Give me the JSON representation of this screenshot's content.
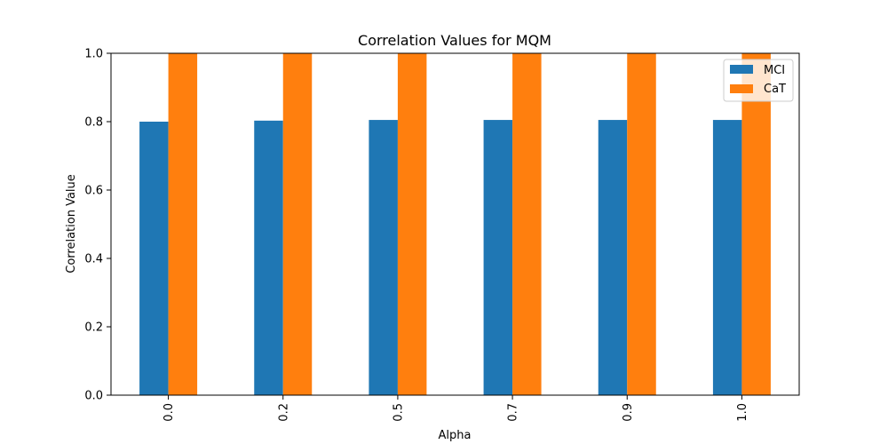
{
  "chart_data": {
    "type": "bar",
    "title": "Correlation Values for MQM",
    "xlabel": "Alpha",
    "ylabel": "Correlation Value",
    "categories": [
      "0.0",
      "0.2",
      "0.5",
      "0.7",
      "0.9",
      "1.0"
    ],
    "series": [
      {
        "name": "MCI",
        "color": "#1f77b4",
        "values": [
          0.8,
          0.803,
          0.805,
          0.805,
          0.805,
          0.805
        ]
      },
      {
        "name": "CaT",
        "color": "#ff7f0e",
        "values": [
          1.0,
          1.0,
          1.0,
          1.0,
          1.0,
          1.0
        ]
      }
    ],
    "ylim": [
      0,
      1.0
    ],
    "yticks": [
      "0.0",
      "0.2",
      "0.4",
      "0.6",
      "0.8",
      "1.0"
    ],
    "grid": false,
    "legend_position": "top-right"
  }
}
